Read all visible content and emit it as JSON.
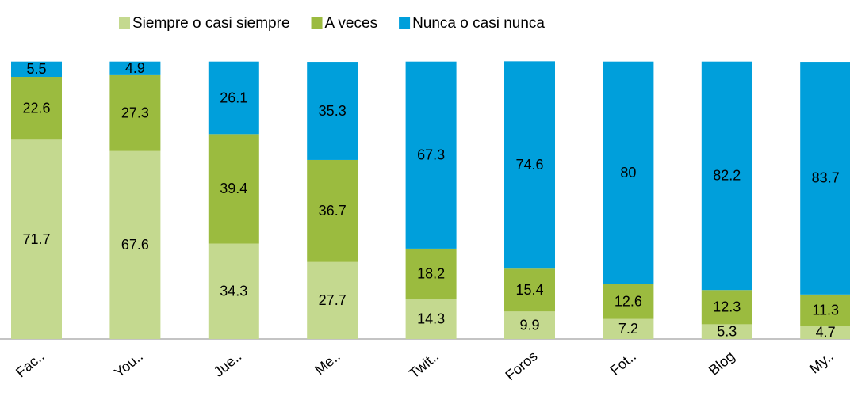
{
  "chart_data": {
    "type": "stacked_bar",
    "categories": [
      "Fac..",
      "You..",
      "Jue..",
      "Me..",
      "Twit..",
      "Foros",
      "Fot..",
      "Blog",
      "My.."
    ],
    "series": [
      {
        "name": "Siempre o casi siempre",
        "color": "#c4d98f",
        "values": [
          71.7,
          67.6,
          34.3,
          27.7,
          14.3,
          9.9,
          7.2,
          5.3,
          4.7
        ]
      },
      {
        "name": "A veces",
        "color": "#9bbb3f",
        "values": [
          22.6,
          27.3,
          39.4,
          36.7,
          18.2,
          15.4,
          12.6,
          12.3,
          11.3
        ]
      },
      {
        "name": "Nunca o casi nunca",
        "color": "#009fdb",
        "values": [
          5.5,
          4.9,
          26.1,
          35.3,
          67.3,
          74.6,
          80,
          82.2,
          83.7
        ]
      }
    ],
    "ylim": [
      0,
      100
    ],
    "legend": "top"
  }
}
